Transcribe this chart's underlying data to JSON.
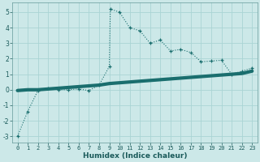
{
  "xlabel": "Humidex (Indice chaleur)",
  "background_color": "#cce8e8",
  "grid_color": "#aad4d4",
  "line_color": "#1a6e6e",
  "xlim": [
    -0.5,
    23.5
  ],
  "ylim": [
    -3.4,
    5.6
  ],
  "xticks": [
    0,
    1,
    2,
    3,
    4,
    5,
    6,
    7,
    8,
    9,
    10,
    11,
    12,
    13,
    14,
    15,
    16,
    17,
    18,
    19,
    20,
    21,
    22,
    23
  ],
  "yticks": [
    -3,
    -2,
    -1,
    0,
    1,
    2,
    3,
    4,
    5
  ],
  "curve1_x": [
    0,
    1,
    2,
    3,
    4,
    5,
    6,
    7,
    8,
    9,
    9.1,
    10,
    11,
    12,
    13,
    14,
    15,
    16,
    17,
    18,
    19,
    20,
    21,
    22,
    23
  ],
  "curve1_y": [
    -3,
    -1.4,
    -0.05,
    0.1,
    0.0,
    0.0,
    0.05,
    -0.05,
    0.3,
    1.5,
    5.2,
    5.0,
    4.0,
    3.8,
    3.0,
    3.2,
    2.5,
    2.6,
    2.4,
    1.8,
    1.85,
    1.9,
    1.0,
    1.2,
    1.4
  ],
  "curve2_x": [
    0,
    1,
    2,
    3,
    4,
    5,
    6,
    7,
    8,
    9,
    10,
    11,
    12,
    13,
    14,
    15,
    16,
    17,
    18,
    19,
    20,
    21,
    22,
    23
  ],
  "curve2_y": [
    -0.05,
    0.0,
    0.0,
    0.05,
    0.1,
    0.15,
    0.2,
    0.25,
    0.3,
    0.4,
    0.45,
    0.5,
    0.55,
    0.6,
    0.65,
    0.7,
    0.75,
    0.8,
    0.85,
    0.9,
    0.95,
    1.0,
    1.05,
    1.2
  ]
}
